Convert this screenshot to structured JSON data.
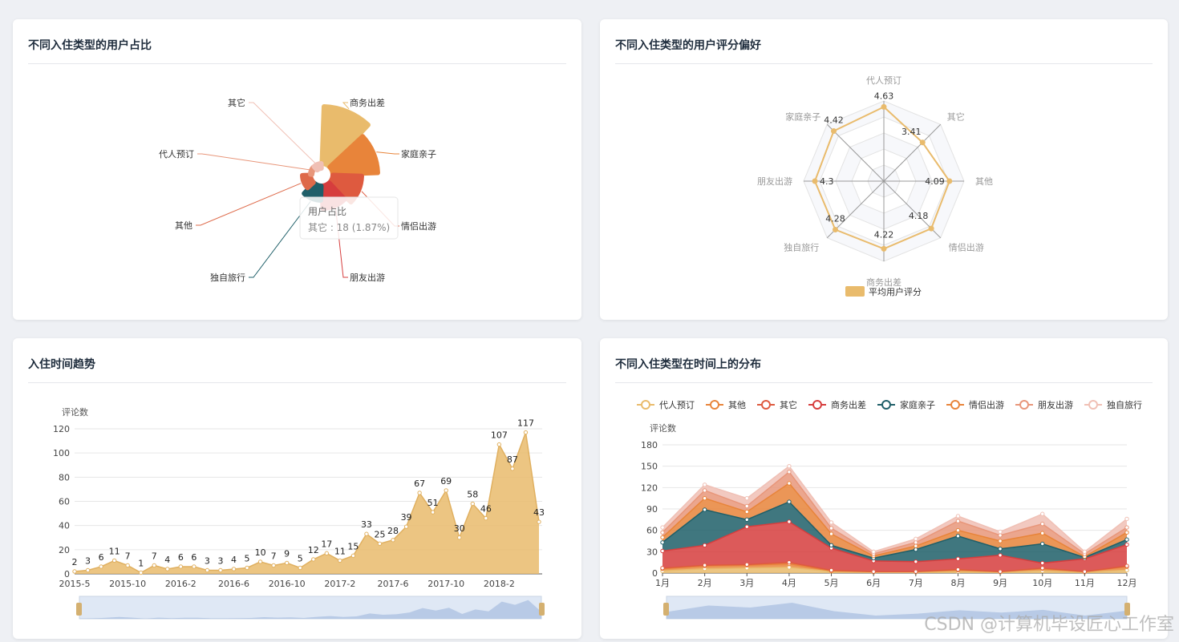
{
  "cards": {
    "pie_title": "不同入住类型的用户占比",
    "radar_title": "不同入住类型的用户评分偏好",
    "trend_title": "入住时间趋势",
    "dist_title": "不同入住类型在时间上的分布"
  },
  "watermark": "CSDN @计算机毕设匠心工作室",
  "colors": {
    "gold": "#e9bb6c",
    "orange": "#e8843a",
    "red_orange": "#de5a3f",
    "red": "#d63d3d",
    "teal": "#1f5f69",
    "salmon": "#e8967a",
    "pink": "#f0c0b5"
  },
  "chart_data": [
    {
      "type": "pie",
      "variant": "rose",
      "title": "不同入住类型的用户占比",
      "slices": [
        {
          "name": "商务出差",
          "color": "#e9bb6c"
        },
        {
          "name": "家庭亲子",
          "color": "#e8843a"
        },
        {
          "name": "情侣出游",
          "color": "#de5a3f"
        },
        {
          "name": "朋友出游",
          "color": "#d63d3d"
        },
        {
          "name": "独自旅行",
          "color": "#1f5f69"
        },
        {
          "name": "其他",
          "color": "#de6a4a"
        },
        {
          "name": "代人预订",
          "color": "#e8967a"
        },
        {
          "name": "其它",
          "color": "#f0c0b5"
        }
      ],
      "tooltip": {
        "title": "用户占比",
        "text": "其它 : 18 (1.87%)"
      }
    },
    {
      "type": "radar",
      "title": "不同入住类型的用户评分偏好",
      "indicators": [
        "代人预订",
        "其它",
        "其他",
        "情侣出游",
        "商务出差",
        "独自旅行",
        "朋友出游",
        "家庭亲子"
      ],
      "series": [
        {
          "name": "平均用户评分",
          "values": [
            4.63,
            3.41,
            4.09,
            4.18,
            4.22,
            4.28,
            4.3,
            4.42
          ]
        }
      ],
      "max": 5,
      "legend": "bottom"
    },
    {
      "type": "area",
      "title": "入住时间趋势",
      "ylabel": "评论数",
      "ylim": [
        0,
        120
      ],
      "yticks": [
        0,
        20,
        40,
        60,
        80,
        100,
        120
      ],
      "xtick_labels": [
        "2015-5",
        "2015-10",
        "2016-2",
        "2016-6",
        "2016-10",
        "2017-2",
        "2017-6",
        "2017-10",
        "2018-2"
      ],
      "values": [
        2,
        3,
        6,
        11,
        7,
        1,
        7,
        4,
        6,
        6,
        3,
        3,
        4,
        5,
        10,
        7,
        9,
        5,
        12,
        17,
        11,
        15,
        33,
        25,
        28,
        39,
        67,
        51,
        69,
        30,
        58,
        46,
        107,
        87,
        117,
        43
      ],
      "data_zoom": "bottom"
    },
    {
      "type": "area",
      "stacked": true,
      "title": "不同入住类型在时间上的分布",
      "ylabel": "评论数",
      "ylim": [
        0,
        180
      ],
      "yticks": [
        0,
        30,
        60,
        90,
        120,
        150,
        180
      ],
      "categories": [
        "1月",
        "2月",
        "3月",
        "4月",
        "5月",
        "6月",
        "7月",
        "8月",
        "9月",
        "10月",
        "11月",
        "12月"
      ],
      "legend": "top",
      "series": [
        {
          "name": "代人预订",
          "color": "#e9bb6c",
          "values": [
            3,
            6,
            7,
            8,
            2,
            1,
            1,
            2,
            1,
            3,
            1,
            4
          ]
        },
        {
          "name": "其他",
          "color": "#e8843a",
          "values": [
            3,
            4,
            4,
            5,
            1,
            1,
            1,
            2,
            1,
            3,
            1,
            5
          ]
        },
        {
          "name": "其它",
          "color": "#de5a3f",
          "values": [
            1,
            1,
            1,
            2,
            1,
            0,
            0,
            1,
            0,
            1,
            0,
            1
          ]
        },
        {
          "name": "商务出差",
          "color": "#d63d3d",
          "values": [
            24,
            28,
            53,
            57,
            31,
            15,
            14,
            15,
            23,
            7,
            18,
            30
          ]
        },
        {
          "name": "家庭亲子",
          "color": "#1f5f69",
          "values": [
            12,
            50,
            10,
            28,
            4,
            4,
            17,
            32,
            9,
            27,
            2,
            7
          ]
        },
        {
          "name": "情侣出游",
          "color": "#e8843a",
          "values": [
            7,
            16,
            11,
            26,
            16,
            3,
            5,
            8,
            11,
            15,
            1,
            10
          ]
        },
        {
          "name": "朋友出游",
          "color": "#e8967a",
          "values": [
            7,
            11,
            8,
            16,
            8,
            3,
            5,
            13,
            8,
            13,
            4,
            7
          ]
        },
        {
          "name": "独自旅行",
          "color": "#f0c0b5",
          "values": [
            7,
            8,
            11,
            8,
            8,
            3,
            5,
            7,
            5,
            14,
            3,
            12
          ]
        }
      ],
      "data_zoom": "bottom"
    }
  ]
}
